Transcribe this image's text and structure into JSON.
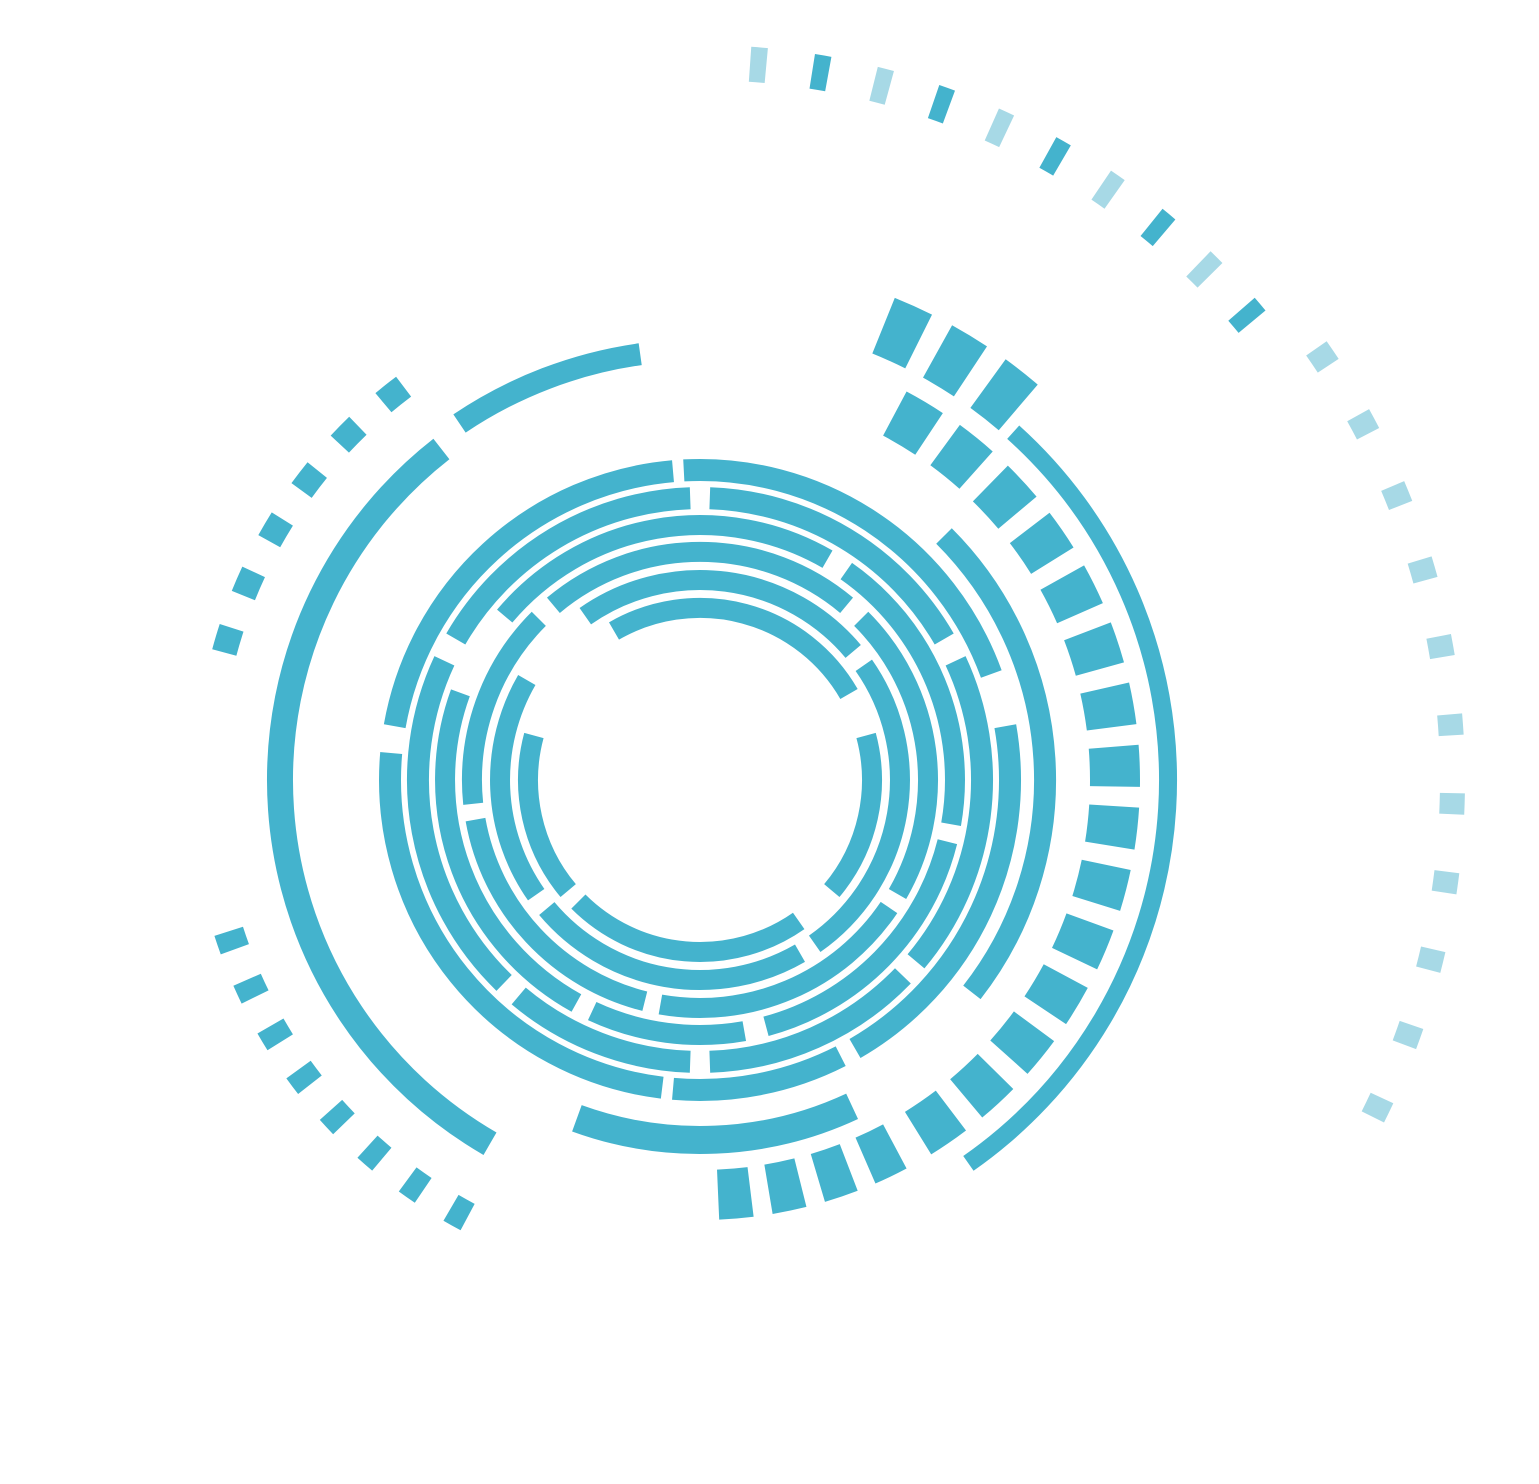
{
  "graphic": {
    "kind": "abstract concentric circular tech ring",
    "icon": "concentric-rings-graphic"
  },
  "colors": {
    "background": "#ffffff",
    "primary": "#44b3cd",
    "light": "#a7d9e6"
  }
}
